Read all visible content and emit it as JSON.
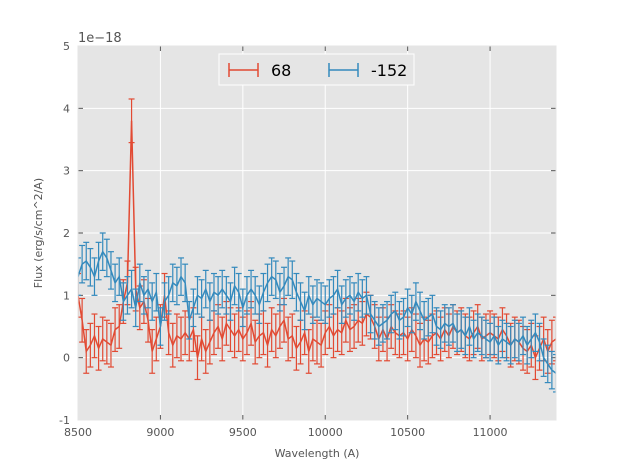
{
  "chart_data": {
    "type": "line",
    "title": "",
    "xlabel": "Wavelength (A)",
    "ylabel": "Flux (erg/s/cm^2/A)",
    "y_offset_label": "1e−18",
    "xlim": [
      8500,
      11400
    ],
    "ylim": [
      -1,
      5
    ],
    "x_ticks": [
      8500,
      9000,
      9500,
      10000,
      10500,
      11000
    ],
    "y_ticks": [
      -1,
      0,
      1,
      2,
      3,
      4,
      5
    ],
    "grid": true,
    "legend_position": "top-center",
    "series": [
      {
        "name": "68",
        "color": "#E24A33",
        "x": [
          8500,
          8525,
          8550,
          8575,
          8600,
          8625,
          8650,
          8675,
          8700,
          8725,
          8750,
          8775,
          8800,
          8825,
          8850,
          8875,
          8900,
          8925,
          8950,
          8975,
          9000,
          9025,
          9050,
          9075,
          9100,
          9125,
          9150,
          9175,
          9200,
          9225,
          9250,
          9275,
          9300,
          9325,
          9350,
          9375,
          9400,
          9425,
          9450,
          9475,
          9500,
          9525,
          9550,
          9575,
          9600,
          9625,
          9650,
          9675,
          9700,
          9725,
          9750,
          9775,
          9800,
          9825,
          9850,
          9875,
          9900,
          9925,
          9950,
          9975,
          10000,
          10025,
          10050,
          10075,
          10100,
          10125,
          10150,
          10175,
          10200,
          10225,
          10250,
          10275,
          10300,
          10325,
          10350,
          10375,
          10400,
          10425,
          10450,
          10475,
          10500,
          10525,
          10550,
          10575,
          10600,
          10625,
          10650,
          10675,
          10700,
          10725,
          10750,
          10775,
          10800,
          10825,
          10850,
          10875,
          10900,
          10925,
          10950,
          10975,
          11000,
          11025,
          11050,
          11075,
          11100,
          11125,
          11150,
          11175,
          11200,
          11225,
          11250,
          11275,
          11300,
          11325,
          11350,
          11375,
          11400
        ],
        "y": [
          1.0,
          0.6,
          0.1,
          0.2,
          0.35,
          0.15,
          0.3,
          0.25,
          0.2,
          0.45,
          0.5,
          0.9,
          1.2,
          3.8,
          1.1,
          0.8,
          0.9,
          0.6,
          0.1,
          0.3,
          0.5,
          1.0,
          0.4,
          0.2,
          0.35,
          0.3,
          0.4,
          0.3,
          0.45,
          0.0,
          0.3,
          0.1,
          0.25,
          0.4,
          0.5,
          0.3,
          0.55,
          0.45,
          0.35,
          0.45,
          0.3,
          0.4,
          0.55,
          0.25,
          0.35,
          0.4,
          0.2,
          0.45,
          0.35,
          0.5,
          0.6,
          0.3,
          0.35,
          0.15,
          0.25,
          0.4,
          0.1,
          0.3,
          0.25,
          0.2,
          0.4,
          0.5,
          0.35,
          0.45,
          0.4,
          0.6,
          0.45,
          0.5,
          0.6,
          0.55,
          0.7,
          0.65,
          0.5,
          0.3,
          0.45,
          0.3,
          0.5,
          0.4,
          0.35,
          0.4,
          0.3,
          0.45,
          0.35,
          0.2,
          0.3,
          0.25,
          0.35,
          0.4,
          0.3,
          0.45,
          0.35,
          0.5,
          0.4,
          0.45,
          0.35,
          0.3,
          0.4,
          0.5,
          0.3,
          0.35,
          0.4,
          0.35,
          0.3,
          0.45,
          0.35,
          0.2,
          0.3,
          0.25,
          0.15,
          0.1,
          0.2,
          0.0,
          0.15,
          0.3,
          0.1,
          0.25,
          0.3
        ],
        "yerr": 0.35
      },
      {
        "name": "-152",
        "color": "#348ABD",
        "x": [
          8500,
          8525,
          8550,
          8575,
          8600,
          8625,
          8650,
          8675,
          8700,
          8725,
          8750,
          8775,
          8800,
          8825,
          8850,
          8875,
          8900,
          8925,
          8950,
          8975,
          9000,
          9025,
          9050,
          9075,
          9100,
          9125,
          9150,
          9175,
          9200,
          9225,
          9250,
          9275,
          9300,
          9325,
          9350,
          9375,
          9400,
          9425,
          9450,
          9475,
          9500,
          9525,
          9550,
          9575,
          9600,
          9625,
          9650,
          9675,
          9700,
          9725,
          9750,
          9775,
          9800,
          9825,
          9850,
          9875,
          9900,
          9925,
          9950,
          9975,
          10000,
          10025,
          10050,
          10075,
          10100,
          10125,
          10150,
          10175,
          10200,
          10225,
          10250,
          10275,
          10300,
          10325,
          10350,
          10375,
          10400,
          10425,
          10450,
          10475,
          10500,
          10525,
          10550,
          10575,
          10600,
          10625,
          10650,
          10675,
          10700,
          10725,
          10750,
          10775,
          10800,
          10825,
          10850,
          10875,
          10900,
          10925,
          10950,
          10975,
          11000,
          11025,
          11050,
          11075,
          11100,
          11125,
          11150,
          11175,
          11200,
          11225,
          11250,
          11275,
          11300,
          11325,
          11350,
          11375,
          11400
        ],
        "y": [
          1.3,
          1.5,
          1.55,
          1.45,
          1.3,
          1.55,
          1.7,
          1.6,
          1.4,
          1.2,
          1.3,
          0.9,
          1.0,
          1.1,
          0.8,
          1.2,
          1.0,
          1.1,
          0.9,
          1.05,
          0.5,
          0.9,
          1.0,
          1.2,
          1.15,
          1.3,
          1.2,
          0.6,
          0.8,
          1.0,
          0.95,
          1.1,
          0.9,
          1.05,
          1.0,
          1.1,
          1.0,
          0.9,
          1.15,
          1.05,
          0.8,
          1.0,
          1.1,
          1.0,
          0.85,
          1.05,
          1.2,
          1.3,
          1.25,
          1.05,
          1.15,
          1.3,
          1.25,
          1.05,
          0.9,
          0.75,
          1.0,
          0.85,
          0.95,
          0.9,
          0.85,
          0.95,
          1.0,
          1.1,
          0.85,
          0.95,
          1.0,
          0.9,
          1.05,
          0.95,
          1.0,
          0.7,
          0.6,
          0.5,
          0.55,
          0.6,
          0.7,
          0.75,
          0.6,
          0.65,
          0.8,
          0.7,
          0.9,
          0.75,
          0.6,
          0.65,
          0.7,
          0.5,
          0.45,
          0.55,
          0.5,
          0.55,
          0.4,
          0.45,
          0.35,
          0.5,
          0.3,
          0.4,
          0.35,
          0.3,
          0.25,
          0.35,
          0.2,
          0.3,
          0.25,
          0.2,
          0.3,
          0.25,
          0.35,
          0.2,
          0.3,
          0.4,
          0.25,
          0.0,
          -0.1,
          -0.2,
          -0.25
        ],
        "yerr": 0.3
      }
    ]
  }
}
